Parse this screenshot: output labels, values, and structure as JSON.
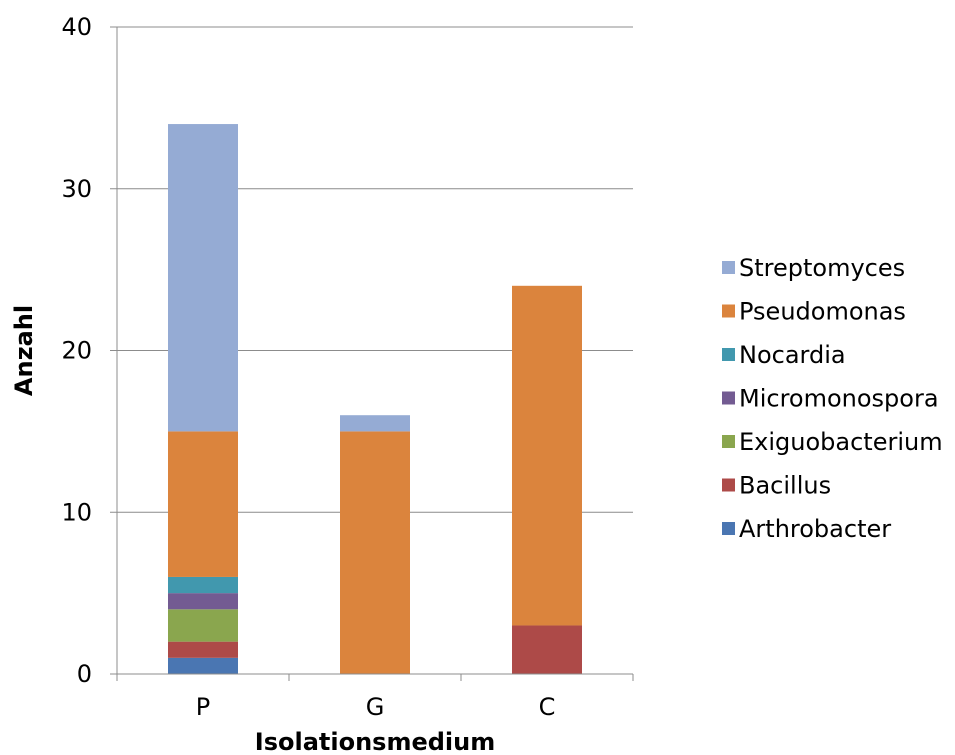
{
  "chart_data": {
    "type": "bar",
    "stacked": true,
    "categories": [
      "P",
      "G",
      "C"
    ],
    "xlabel": "Isolationsmedium",
    "ylabel": "Anzahl",
    "ylim": [
      0,
      40
    ],
    "yticks": [
      0,
      10,
      20,
      30,
      40
    ],
    "grid": true,
    "legend_position": "right",
    "series": [
      {
        "name": "Arthrobacter",
        "color": "#4a76b2",
        "values": [
          1,
          0,
          0
        ]
      },
      {
        "name": "Bacillus",
        "color": "#ad4a48",
        "values": [
          1,
          0,
          3
        ]
      },
      {
        "name": "Exiguobacterium",
        "color": "#8aa64e",
        "values": [
          2,
          0,
          0
        ]
      },
      {
        "name": "Micromonospora",
        "color": "#735b92",
        "values": [
          1,
          0,
          0
        ]
      },
      {
        "name": "Nocardia",
        "color": "#4198ae",
        "values": [
          1,
          0,
          0
        ]
      },
      {
        "name": "Pseudomonas",
        "color": "#db843d",
        "values": [
          9,
          15,
          21
        ]
      },
      {
        "name": "Streptomyces",
        "color": "#95abd4",
        "values": [
          19,
          1,
          0
        ]
      }
    ]
  }
}
